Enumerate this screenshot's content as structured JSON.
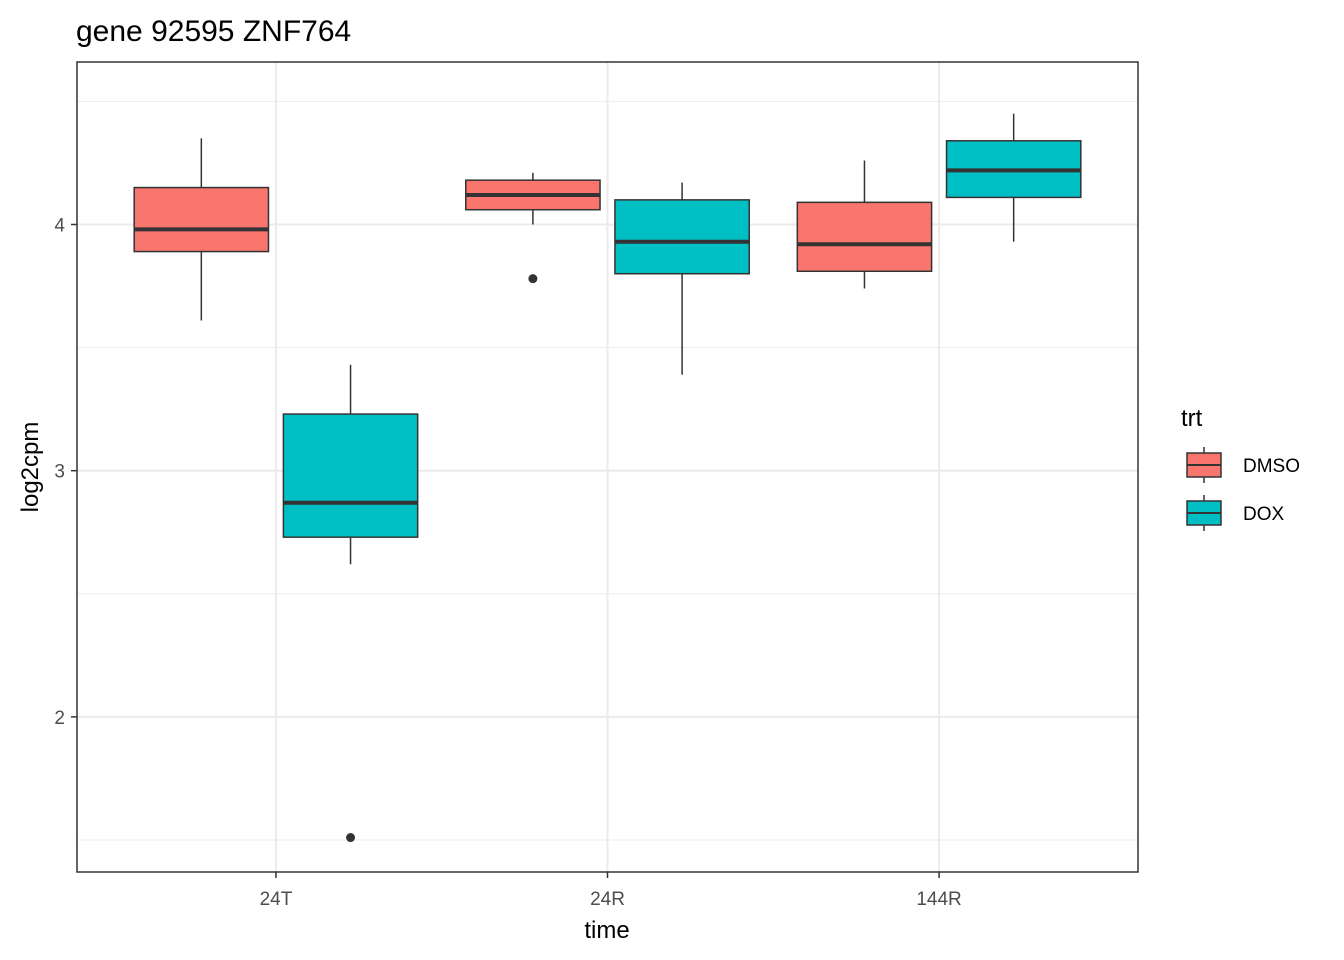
{
  "chart_data": {
    "type": "boxplot",
    "title": "gene 92595 ZNF764",
    "xlabel": "time",
    "ylabel": "log2cpm",
    "categories": [
      "24T",
      "24R",
      "144R"
    ],
    "ylim": [
      1.37,
      4.66
    ],
    "yticks": [
      2,
      3,
      4
    ],
    "ytick_labels": [
      "2",
      "3",
      "4"
    ],
    "grid": true,
    "legend": {
      "title": "trt",
      "position": "right",
      "entries": [
        {
          "name": "DMSO",
          "color": "#F8766D"
        },
        {
          "name": "DOX",
          "color": "#00BFC4"
        }
      ]
    },
    "series": [
      {
        "name": "DMSO",
        "color": "#F8766D",
        "boxes": [
          {
            "category": "24T",
            "whisker_low": 3.61,
            "q1": 3.89,
            "median": 3.98,
            "q3": 4.15,
            "whisker_high": 4.35,
            "outliers": []
          },
          {
            "category": "24R",
            "whisker_low": 4.0,
            "q1": 4.06,
            "median": 4.12,
            "q3": 4.18,
            "whisker_high": 4.21,
            "outliers": [
              3.78
            ]
          },
          {
            "category": "144R",
            "whisker_low": 3.74,
            "q1": 3.81,
            "median": 3.92,
            "q3": 4.09,
            "whisker_high": 4.26,
            "outliers": []
          }
        ]
      },
      {
        "name": "DOX",
        "color": "#00BFC4",
        "boxes": [
          {
            "category": "24T",
            "whisker_low": 2.62,
            "q1": 2.73,
            "median": 2.87,
            "q3": 3.23,
            "whisker_high": 3.43,
            "outliers": [
              1.51
            ]
          },
          {
            "category": "24R",
            "whisker_low": 3.39,
            "q1": 3.8,
            "median": 3.93,
            "q3": 4.1,
            "whisker_high": 4.17,
            "outliers": []
          },
          {
            "category": "144R",
            "whisker_low": 3.93,
            "q1": 4.11,
            "median": 4.22,
            "q3": 4.34,
            "whisker_high": 4.45,
            "outliers": []
          }
        ]
      }
    ]
  }
}
